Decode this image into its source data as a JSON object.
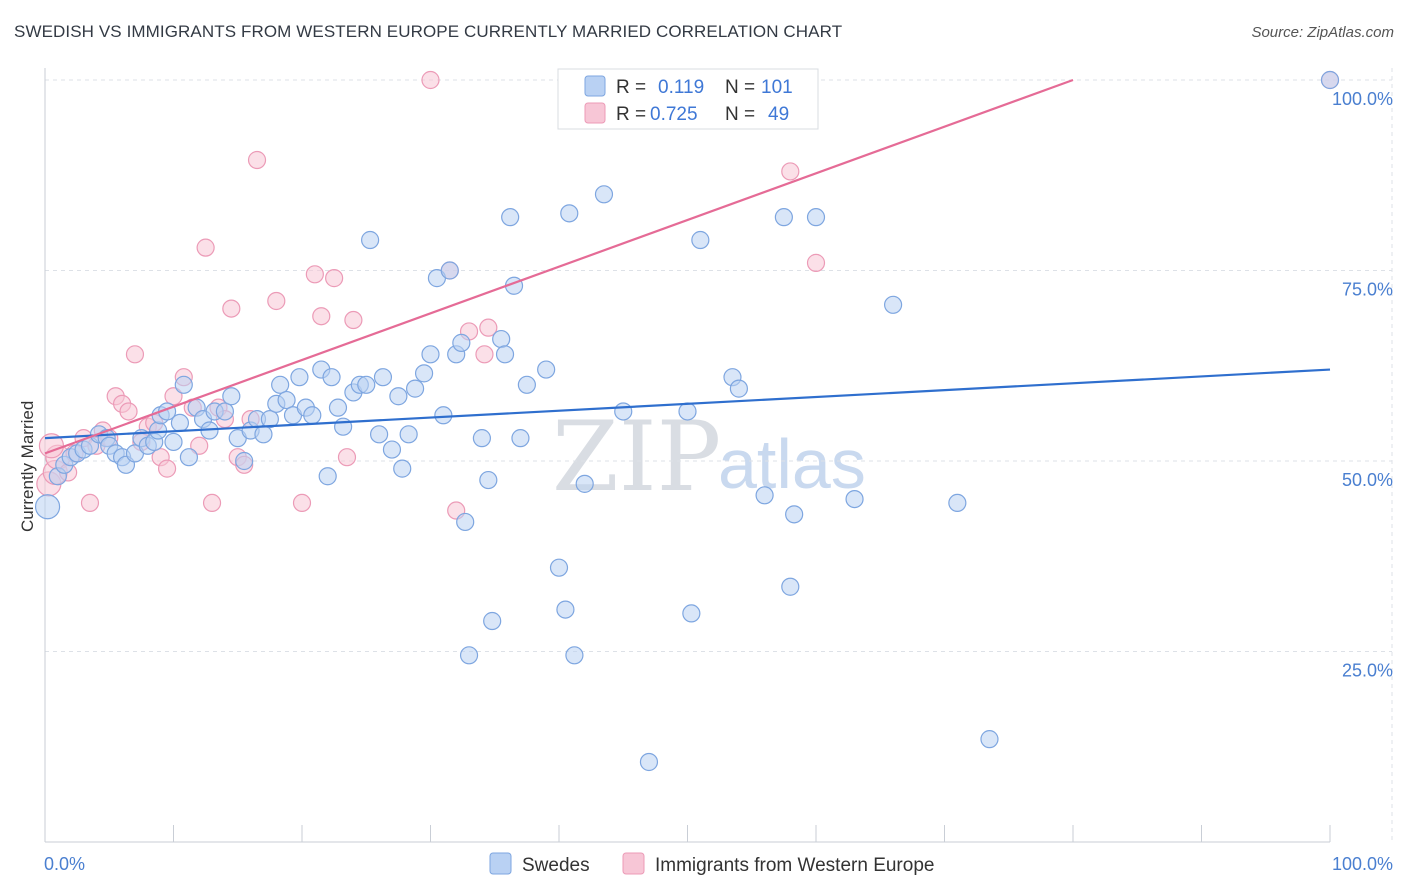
{
  "title": "SWEDISH VS IMMIGRANTS FROM WESTERN EUROPE CURRENTLY MARRIED CORRELATION CHART",
  "source": "Source: ZipAtlas.com",
  "watermark": {
    "zip": "ZIP",
    "atlas": "atlas"
  },
  "colors": {
    "swedes_fill": "#b9d1f3",
    "swedes_stroke": "#7ea6e0",
    "swedes_line": "#2f6fce",
    "immigrants_fill": "#f7c6d6",
    "immigrants_stroke": "#ec9bb7",
    "immigrants_line": "#e56b96",
    "grid": "#dde1e7",
    "tick_text": "#4a7fd0"
  },
  "legend": {
    "rows": [
      {
        "r_label": "R =",
        "r_value": "0.119",
        "n_label": "N =",
        "n_value": "101"
      },
      {
        "r_label": "R =",
        "r_value": "0.725",
        "n_label": "N =",
        "n_value": "49"
      }
    ]
  },
  "bottom_legend": {
    "series1": "Swedes",
    "series2": "Immigrants from Western Europe"
  },
  "chart_data": {
    "type": "scatter",
    "title": "SWEDISH VS IMMIGRANTS FROM WESTERN EUROPE CURRENTLY MARRIED CORRELATION CHART",
    "xlabel": "",
    "ylabel": "Currently Married",
    "xlim": [
      0,
      100
    ],
    "ylim": [
      0,
      103
    ],
    "x_tick_labels": [
      "0.0%",
      "100.0%"
    ],
    "y_ticks": [
      25,
      50,
      75,
      100
    ],
    "y_tick_labels": [
      "25.0%",
      "50.0%",
      "75.0%",
      "100.0%"
    ],
    "legend_position": "top-center",
    "series": [
      {
        "name": "Swedes",
        "R": 0.119,
        "N": 101,
        "trend": {
          "x": [
            0,
            100
          ],
          "y": [
            53,
            62
          ]
        },
        "points": [
          [
            0.2,
            44
          ],
          [
            1.0,
            48
          ],
          [
            1.5,
            49.5
          ],
          [
            2.0,
            50.5
          ],
          [
            2.5,
            51
          ],
          [
            3.0,
            51.5
          ],
          [
            3.5,
            52
          ],
          [
            4.2,
            53.5
          ],
          [
            4.8,
            53
          ],
          [
            5.0,
            52
          ],
          [
            5.5,
            51
          ],
          [
            6.0,
            50.5
          ],
          [
            6.3,
            49.5
          ],
          [
            7.0,
            51
          ],
          [
            7.5,
            53
          ],
          [
            8.0,
            52
          ],
          [
            8.5,
            52.5
          ],
          [
            8.8,
            54
          ],
          [
            9.0,
            56
          ],
          [
            9.5,
            56.5
          ],
          [
            10.0,
            52.5
          ],
          [
            10.5,
            55
          ],
          [
            10.8,
            60
          ],
          [
            11.2,
            50.5
          ],
          [
            11.8,
            57
          ],
          [
            12.3,
            55.5
          ],
          [
            12.8,
            54
          ],
          [
            13.2,
            56.5
          ],
          [
            14.0,
            56.5
          ],
          [
            14.5,
            58.5
          ],
          [
            15.0,
            53
          ],
          [
            15.5,
            50
          ],
          [
            16.0,
            54
          ],
          [
            16.5,
            55.5
          ],
          [
            17.0,
            53.5
          ],
          [
            17.5,
            55.5
          ],
          [
            18.0,
            57.5
          ],
          [
            18.3,
            60
          ],
          [
            18.8,
            58
          ],
          [
            19.3,
            56
          ],
          [
            19.8,
            61
          ],
          [
            20.3,
            57
          ],
          [
            20.8,
            56
          ],
          [
            21.5,
            62
          ],
          [
            22.0,
            48
          ],
          [
            22.3,
            61
          ],
          [
            22.8,
            57
          ],
          [
            23.2,
            54.5
          ],
          [
            24.0,
            59
          ],
          [
            24.5,
            60
          ],
          [
            25.0,
            60
          ],
          [
            25.3,
            79
          ],
          [
            26.0,
            53.5
          ],
          [
            26.3,
            61
          ],
          [
            27.0,
            51.5
          ],
          [
            27.5,
            58.5
          ],
          [
            27.8,
            49
          ],
          [
            28.3,
            53.5
          ],
          [
            28.8,
            59.5
          ],
          [
            29.5,
            61.5
          ],
          [
            30.0,
            64
          ],
          [
            30.5,
            74
          ],
          [
            31.0,
            56
          ],
          [
            31.5,
            75
          ],
          [
            32.0,
            64
          ],
          [
            32.4,
            65.5
          ],
          [
            32.7,
            42
          ],
          [
            34.0,
            53
          ],
          [
            34.5,
            47.5
          ],
          [
            34.8,
            29
          ],
          [
            35.5,
            66
          ],
          [
            35.8,
            64
          ],
          [
            36.2,
            82
          ],
          [
            36.5,
            73
          ],
          [
            37.0,
            53
          ],
          [
            37.5,
            60
          ],
          [
            39.0,
            62
          ],
          [
            40.0,
            36
          ],
          [
            40.5,
            30.5
          ],
          [
            40.8,
            82.5
          ],
          [
            41.2,
            24.5
          ],
          [
            42.0,
            47
          ],
          [
            43.5,
            85
          ],
          [
            45.0,
            56.5
          ],
          [
            47.0,
            10.5
          ],
          [
            50.0,
            56.5
          ],
          [
            50.3,
            30
          ],
          [
            51.0,
            79
          ],
          [
            53.5,
            61
          ],
          [
            54.0,
            59.5
          ],
          [
            56.0,
            45.5
          ],
          [
            57.5,
            82
          ],
          [
            58.0,
            33.5
          ],
          [
            58.3,
            43
          ],
          [
            60.0,
            82
          ],
          [
            63.0,
            45
          ],
          [
            66.0,
            70.5
          ],
          [
            71.0,
            44.5
          ],
          [
            73.5,
            13.5
          ],
          [
            100.0,
            100
          ],
          [
            33.0,
            24.5
          ]
        ]
      },
      {
        "name": "Immigrants from Western Europe",
        "R": 0.725,
        "N": 49,
        "trend": {
          "x": [
            0,
            80
          ],
          "y": [
            51,
            100
          ]
        },
        "points": [
          [
            0.3,
            47
          ],
          [
            0.8,
            48.5
          ],
          [
            1.0,
            50.5
          ],
          [
            1.8,
            48.5
          ],
          [
            2.3,
            51
          ],
          [
            3.0,
            53
          ],
          [
            3.5,
            44.5
          ],
          [
            4.0,
            52
          ],
          [
            4.5,
            54
          ],
          [
            5.0,
            53
          ],
          [
            5.5,
            58.5
          ],
          [
            6.0,
            57.5
          ],
          [
            6.5,
            56.5
          ],
          [
            7.0,
            64
          ],
          [
            7.5,
            52.5
          ],
          [
            8.0,
            54.5
          ],
          [
            8.5,
            55
          ],
          [
            9.0,
            50.5
          ],
          [
            9.5,
            49
          ],
          [
            10.0,
            58.5
          ],
          [
            10.8,
            61
          ],
          [
            11.5,
            57
          ],
          [
            12.0,
            52
          ],
          [
            12.5,
            78
          ],
          [
            13.0,
            44.5
          ],
          [
            13.5,
            57
          ],
          [
            14.0,
            55.5
          ],
          [
            14.5,
            70
          ],
          [
            15.0,
            50.5
          ],
          [
            15.5,
            49.5
          ],
          [
            16.0,
            55.5
          ],
          [
            16.5,
            89.5
          ],
          [
            18.0,
            71
          ],
          [
            20.0,
            44.5
          ],
          [
            21.0,
            74.5
          ],
          [
            21.5,
            69
          ],
          [
            22.5,
            74
          ],
          [
            23.5,
            50.5
          ],
          [
            24.0,
            68.5
          ],
          [
            31.5,
            75
          ],
          [
            32.0,
            43.5
          ],
          [
            33.0,
            67
          ],
          [
            34.5,
            67.5
          ],
          [
            30.0,
            100
          ],
          [
            34.2,
            64
          ],
          [
            58.0,
            88
          ],
          [
            60.0,
            76
          ],
          [
            100.0,
            100
          ],
          [
            0.5,
            52
          ]
        ]
      }
    ]
  }
}
